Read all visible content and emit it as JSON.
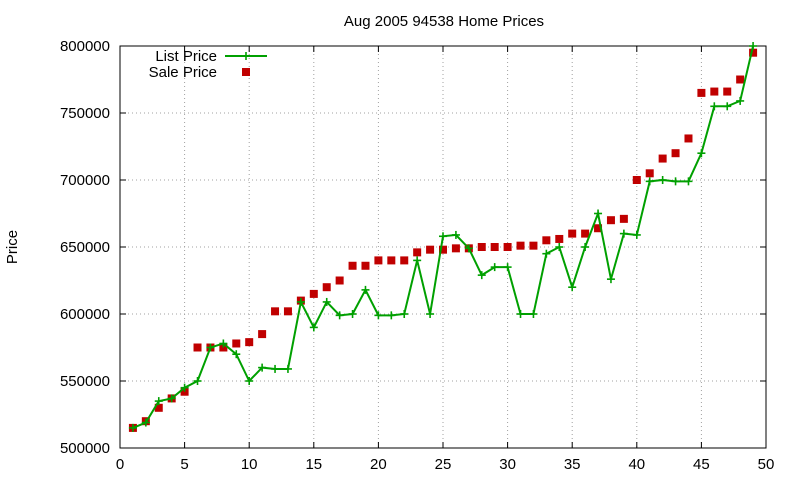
{
  "chart_data": {
    "type": "line",
    "title": "Aug 2005 94538 Home Prices",
    "xlabel": "",
    "ylabel": "Price",
    "xlim": [
      0,
      50
    ],
    "ylim": [
      500000,
      800000
    ],
    "x_ticks": [
      0,
      5,
      10,
      15,
      20,
      25,
      30,
      35,
      40,
      45,
      50
    ],
    "y_ticks": [
      500000,
      550000,
      600000,
      650000,
      700000,
      750000,
      800000
    ],
    "x_tick_labels": [
      "0",
      "5",
      "10",
      "15",
      "20",
      "25",
      "30",
      "35",
      "40",
      "45",
      "50"
    ],
    "y_tick_labels": [
      "500000",
      "550000",
      "600000",
      "650000",
      "700000",
      "750000",
      "800000"
    ],
    "grid": true,
    "legend_position": "top-left",
    "x": [
      1,
      2,
      3,
      4,
      5,
      6,
      7,
      8,
      9,
      10,
      11,
      12,
      13,
      14,
      15,
      16,
      17,
      18,
      19,
      20,
      21,
      22,
      23,
      24,
      25,
      26,
      27,
      28,
      29,
      30,
      31,
      32,
      33,
      34,
      35,
      36,
      37,
      38,
      39,
      40,
      41,
      42,
      43,
      44,
      45,
      46,
      47,
      48,
      49
    ],
    "series": [
      {
        "name": "List Price",
        "style": "linespoints",
        "color": "#00a000",
        "marker": "plus",
        "values": [
          515000,
          519000,
          535000,
          537000,
          545000,
          550000,
          575000,
          578000,
          570000,
          550000,
          560000,
          559000,
          559000,
          609000,
          590000,
          609000,
          599000,
          600000,
          618000,
          599000,
          599000,
          600000,
          640000,
          600000,
          658000,
          659000,
          649000,
          629000,
          635000,
          635000,
          600000,
          600000,
          645000,
          650000,
          620000,
          650000,
          675000,
          626000,
          660000,
          659000,
          699000,
          700000,
          699000,
          699000,
          720000,
          755000,
          755000,
          759000,
          800000
        ]
      },
      {
        "name": "Sale Price",
        "style": "points",
        "color": "#c00000",
        "marker": "square",
        "values": [
          515000,
          520000,
          530000,
          537000,
          542000,
          575000,
          575000,
          575000,
          578000,
          579000,
          585000,
          602000,
          602000,
          610000,
          615000,
          620000,
          625000,
          636000,
          636000,
          640000,
          640000,
          640000,
          646000,
          648000,
          648000,
          649000,
          649000,
          650000,
          650000,
          650000,
          651000,
          651000,
          655000,
          656000,
          660000,
          660000,
          664000,
          670000,
          671000,
          700000,
          705000,
          716000,
          720000,
          731000,
          765000,
          766000,
          766000,
          775000,
          795000
        ]
      }
    ]
  }
}
